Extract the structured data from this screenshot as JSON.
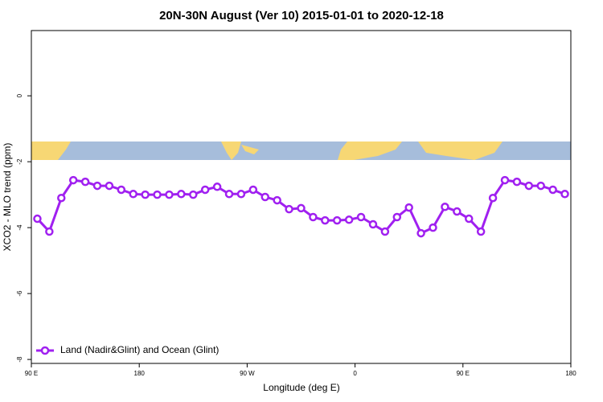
{
  "chart_data": {
    "type": "line",
    "title": "20N-30N August (Ver 10)   2015-01-01 to 2020-12-18",
    "x_label": "Longitude (deg E)",
    "y_label": "XCO2 - MLO trend (ppm)",
    "x": [
      95,
      105,
      115,
      125,
      135,
      145,
      155,
      165,
      175,
      185,
      195,
      205,
      215,
      225,
      235,
      245,
      255,
      265,
      275,
      285,
      295,
      305,
      315,
      325,
      335,
      345,
      355,
      365,
      375,
      385,
      395,
      405,
      415,
      425,
      435,
      445,
      455,
      465,
      475,
      485,
      495,
      505,
      515,
      525,
      535
    ],
    "series": [
      {
        "name": "Land (Nadir&Glint) and Ocean (Glint)",
        "color": "#a020f0",
        "values": [
          -3.73,
          -4.12,
          -3.1,
          -2.56,
          -2.61,
          -2.73,
          -2.73,
          -2.85,
          -2.98,
          -3.0,
          -3.0,
          -3.0,
          -2.98,
          -3.0,
          -2.85,
          -2.76,
          -2.98,
          -2.98,
          -2.85,
          -3.07,
          -3.17,
          -3.44,
          -3.41,
          -3.68,
          -3.78,
          -3.78,
          -3.76,
          -3.68,
          -3.9,
          -4.12,
          -3.68,
          -3.39,
          -4.17,
          -4.0,
          -3.37,
          -3.51,
          -3.73,
          -4.12,
          -3.1,
          -2.56,
          -2.61,
          -2.73,
          -2.73,
          -2.85,
          -2.98
        ]
      }
    ],
    "xlim": [
      90,
      540
    ],
    "xticks": [
      {
        "value": 90,
        "label": "90 E"
      },
      180,
      {
        "value": 270,
        "label": "90 W"
      },
      {
        "value": 360,
        "label": "0"
      },
      {
        "value": 450,
        "label": "90 E"
      },
      {
        "value": 540,
        "label": "180"
      }
    ],
    "ylim": [
      -8.12,
      1.98
    ],
    "yticks": [
      -8,
      -6,
      -4,
      -2,
      0
    ],
    "legend": "bottom-left"
  }
}
